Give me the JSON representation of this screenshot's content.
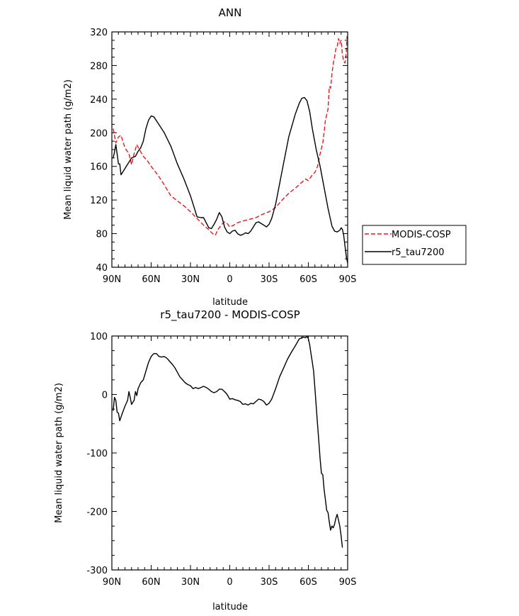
{
  "chart_data": [
    {
      "type": "line",
      "title": "ANN",
      "xlabel": "latitude",
      "ylabel": "Mean liquid water path (g/m2)",
      "xlim": [
        -90,
        90
      ],
      "ylim": [
        40,
        320
      ],
      "x_ticks": [
        {
          "value": -90,
          "label": "90N"
        },
        {
          "value": -60,
          "label": "60N"
        },
        {
          "value": -30,
          "label": "30N"
        },
        {
          "value": 0,
          "label": "0"
        },
        {
          "value": 30,
          "label": "30S"
        },
        {
          "value": 60,
          "label": "60S"
        },
        {
          "value": 90,
          "label": "90S"
        }
      ],
      "y_ticks": [
        40,
        80,
        120,
        160,
        200,
        240,
        280,
        320
      ],
      "legend": {
        "position": "right"
      },
      "series": [
        {
          "name": "MODIS-COSP",
          "color": "#e8191c",
          "style": "dashed",
          "points": [
            [
              -89,
              205
            ],
            [
              -87,
              188
            ],
            [
              -85,
              195
            ],
            [
              -83,
              197
            ],
            [
              -80,
              182
            ],
            [
              -77,
              175
            ],
            [
              -75,
              162
            ],
            [
              -73,
              175
            ],
            [
              -71,
              186
            ],
            [
              -69,
              180
            ],
            [
              -66,
              172
            ],
            [
              -63,
              167
            ],
            [
              -60,
              160
            ],
            [
              -55,
              150
            ],
            [
              -50,
              138
            ],
            [
              -45,
              125
            ],
            [
              -40,
              119
            ],
            [
              -35,
              113
            ],
            [
              -30,
              106
            ],
            [
              -25,
              98
            ],
            [
              -20,
              90
            ],
            [
              -17,
              86
            ],
            [
              -13,
              80
            ],
            [
              -11,
              78
            ],
            [
              -9,
              85
            ],
            [
              -6,
              91
            ],
            [
              -4,
              94
            ],
            [
              -2,
              92
            ],
            [
              0,
              88
            ],
            [
              3,
              90
            ],
            [
              6,
              93
            ],
            [
              10,
              95
            ],
            [
              15,
              97
            ],
            [
              20,
              99
            ],
            [
              25,
              103
            ],
            [
              30,
              106
            ],
            [
              35,
              111
            ],
            [
              40,
              120
            ],
            [
              45,
              128
            ],
            [
              50,
              134
            ],
            [
              55,
              141
            ],
            [
              58,
              145
            ],
            [
              60,
              143
            ],
            [
              63,
              150
            ],
            [
              65,
              153
            ],
            [
              67,
              160
            ],
            [
              69,
              175
            ],
            [
              71,
              188
            ],
            [
              72,
              200
            ],
            [
              73,
              215
            ],
            [
              75,
              228
            ],
            [
              76,
              255
            ],
            [
              77,
              253
            ],
            [
              78,
              270
            ],
            [
              79,
              282
            ],
            [
              80,
              290
            ],
            [
              81,
              300
            ],
            [
              82,
              302
            ],
            [
              83,
              312
            ],
            [
              84,
              306
            ],
            [
              85,
              310
            ],
            [
              86,
              293
            ],
            [
              87,
              285
            ],
            [
              88,
              283
            ],
            [
              89,
              297
            ],
            [
              89.5,
              315
            ]
          ]
        },
        {
          "name": "r5_tau7200",
          "color": "#000000",
          "style": "solid",
          "points": [
            [
              -89,
              170
            ],
            [
              -88,
              177
            ],
            [
              -87,
              186
            ],
            [
              -86,
              175
            ],
            [
              -85,
              163
            ],
            [
              -84,
              163
            ],
            [
              -83,
              150
            ],
            [
              -81,
              155
            ],
            [
              -79,
              160
            ],
            [
              -77,
              165
            ],
            [
              -75,
              170
            ],
            [
              -72,
              172
            ],
            [
              -70,
              178
            ],
            [
              -68,
              182
            ],
            [
              -66,
              190
            ],
            [
              -64,
              205
            ],
            [
              -62,
              215
            ],
            [
              -60,
              220
            ],
            [
              -58,
              219
            ],
            [
              -55,
              212
            ],
            [
              -50,
              200
            ],
            [
              -45,
              184
            ],
            [
              -40,
              163
            ],
            [
              -35,
              145
            ],
            [
              -30,
              125
            ],
            [
              -27,
              110
            ],
            [
              -25,
              100
            ],
            [
              -22,
              99
            ],
            [
              -20,
              99
            ],
            [
              -18,
              93
            ],
            [
              -16,
              87
            ],
            [
              -14,
              86
            ],
            [
              -12,
              91
            ],
            [
              -10,
              97
            ],
            [
              -8,
              105
            ],
            [
              -6,
              100
            ],
            [
              -4,
              88
            ],
            [
              -2,
              82
            ],
            [
              0,
              80
            ],
            [
              2,
              83
            ],
            [
              4,
              84
            ],
            [
              6,
              80
            ],
            [
              8,
              78
            ],
            [
              10,
              79
            ],
            [
              12,
              81
            ],
            [
              14,
              80
            ],
            [
              16,
              83
            ],
            [
              18,
              88
            ],
            [
              20,
              93
            ],
            [
              22,
              94
            ],
            [
              25,
              91
            ],
            [
              28,
              88
            ],
            [
              30,
              91
            ],
            [
              32,
              98
            ],
            [
              35,
              115
            ],
            [
              40,
              155
            ],
            [
              45,
              195
            ],
            [
              50,
              222
            ],
            [
              53,
              235
            ],
            [
              55,
              241
            ],
            [
              57,
              242
            ],
            [
              59,
              238
            ],
            [
              61,
              225
            ],
            [
              63,
              205
            ],
            [
              66,
              180
            ],
            [
              69,
              160
            ],
            [
              72,
              135
            ],
            [
              75,
              110
            ],
            [
              78,
              89
            ],
            [
              80,
              83
            ],
            [
              82,
              82
            ],
            [
              84,
              84
            ],
            [
              85,
              87
            ],
            [
              86,
              85
            ],
            [
              87,
              78
            ],
            [
              88,
              65
            ],
            [
              89,
              52
            ],
            [
              90,
              45
            ]
          ]
        }
      ]
    },
    {
      "type": "line",
      "title": "r5_tau7200 - MODIS-COSP",
      "xlabel": "latitude",
      "ylabel": "Mean liquid water path (g/m2)",
      "xlim": [
        -90,
        90
      ],
      "ylim": [
        -300,
        100
      ],
      "x_ticks": [
        {
          "value": -90,
          "label": "90N"
        },
        {
          "value": -60,
          "label": "60N"
        },
        {
          "value": -30,
          "label": "30N"
        },
        {
          "value": 0,
          "label": "0"
        },
        {
          "value": 30,
          "label": "30S"
        },
        {
          "value": 60,
          "label": "60S"
        },
        {
          "value": 90,
          "label": "90S"
        }
      ],
      "y_ticks": [
        -300,
        -200,
        -100,
        0,
        100
      ],
      "series": [
        {
          "color": "#000000",
          "style": "solid",
          "points": [
            [
              -89,
              -28
            ],
            [
              -88,
              -5
            ],
            [
              -87,
              -10
            ],
            [
              -86,
              -30
            ],
            [
              -85,
              -32
            ],
            [
              -84,
              -45
            ],
            [
              -82,
              -32
            ],
            [
              -80,
              -20
            ],
            [
              -78,
              -10
            ],
            [
              -77,
              5
            ],
            [
              -76,
              -5
            ],
            [
              -75,
              -17
            ],
            [
              -73,
              -10
            ],
            [
              -72,
              5
            ],
            [
              -71,
              -2
            ],
            [
              -70,
              10
            ],
            [
              -68,
              20
            ],
            [
              -66,
              25
            ],
            [
              -64,
              40
            ],
            [
              -62,
              55
            ],
            [
              -60,
              65
            ],
            [
              -58,
              70
            ],
            [
              -56,
              70
            ],
            [
              -54,
              65
            ],
            [
              -52,
              64
            ],
            [
              -50,
              65
            ],
            [
              -48,
              62
            ],
            [
              -46,
              57
            ],
            [
              -44,
              52
            ],
            [
              -42,
              46
            ],
            [
              -40,
              38
            ],
            [
              -38,
              30
            ],
            [
              -36,
              25
            ],
            [
              -34,
              20
            ],
            [
              -32,
              17
            ],
            [
              -30,
              15
            ],
            [
              -28,
              10
            ],
            [
              -26,
              12
            ],
            [
              -24,
              10
            ],
            [
              -22,
              12
            ],
            [
              -20,
              14
            ],
            [
              -18,
              12
            ],
            [
              -16,
              9
            ],
            [
              -14,
              5
            ],
            [
              -12,
              3
            ],
            [
              -10,
              5
            ],
            [
              -8,
              9
            ],
            [
              -6,
              9
            ],
            [
              -4,
              5
            ],
            [
              -2,
              0
            ],
            [
              0,
              -8
            ],
            [
              2,
              -7
            ],
            [
              4,
              -9
            ],
            [
              6,
              -10
            ],
            [
              8,
              -12
            ],
            [
              10,
              -17
            ],
            [
              12,
              -16
            ],
            [
              14,
              -18
            ],
            [
              16,
              -15
            ],
            [
              18,
              -16
            ],
            [
              20,
              -12
            ],
            [
              22,
              -8
            ],
            [
              24,
              -9
            ],
            [
              26,
              -12
            ],
            [
              28,
              -18
            ],
            [
              30,
              -15
            ],
            [
              32,
              -8
            ],
            [
              35,
              10
            ],
            [
              38,
              30
            ],
            [
              41,
              45
            ],
            [
              44,
              60
            ],
            [
              47,
              72
            ],
            [
              50,
              83
            ],
            [
              53,
              95
            ],
            [
              56,
              98
            ],
            [
              58,
              97
            ],
            [
              59,
              100
            ],
            [
              60,
              95
            ],
            [
              61,
              85
            ],
            [
              62,
              70
            ],
            [
              63,
              55
            ],
            [
              64,
              40
            ],
            [
              65,
              10
            ],
            [
              66,
              -20
            ],
            [
              67,
              -50
            ],
            [
              68,
              -80
            ],
            [
              69,
              -110
            ],
            [
              70,
              -135
            ],
            [
              71,
              -137
            ],
            [
              72,
              -162
            ],
            [
              73,
              -180
            ],
            [
              74,
              -198
            ],
            [
              75,
              -202
            ],
            [
              76,
              -218
            ],
            [
              77,
              -232
            ],
            [
              78,
              -225
            ],
            [
              79,
              -228
            ],
            [
              80,
              -222
            ],
            [
              81,
              -212
            ],
            [
              82,
              -205
            ],
            [
              83,
              -215
            ],
            [
              84,
              -225
            ],
            [
              85,
              -242
            ],
            [
              86,
              -262
            ]
          ]
        }
      ]
    }
  ]
}
